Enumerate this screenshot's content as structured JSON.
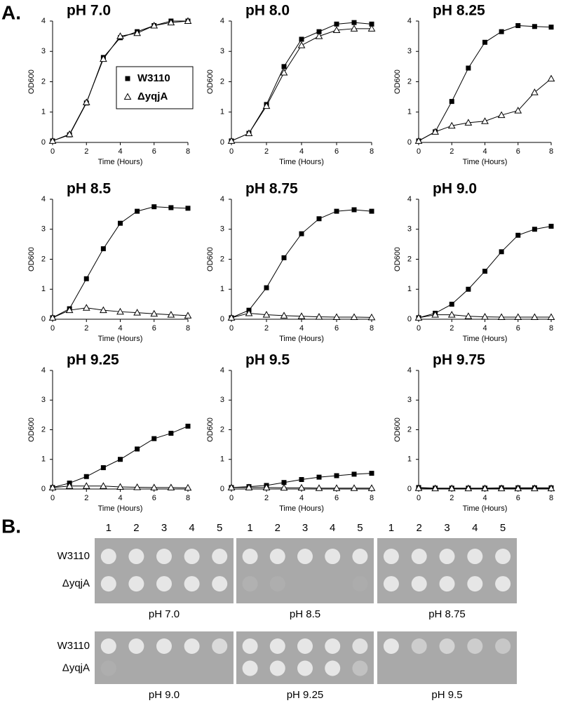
{
  "panel_a": {
    "label": "A.",
    "legend": [
      {
        "name": "W3110",
        "marker": "square"
      },
      {
        "name": "ΔyqjA",
        "marker": "triangle"
      }
    ]
  },
  "chart_data": [
    {
      "type": "line",
      "title": "pH 7.0",
      "xlabel": "Time (Hours)",
      "ylabel": "OD600",
      "x": [
        0,
        1,
        2,
        3,
        4,
        5,
        6,
        7,
        8
      ],
      "xlim": [
        0,
        8
      ],
      "xticks": [
        0,
        2,
        4,
        6,
        8
      ],
      "ylim": [
        0,
        4
      ],
      "yticks": [
        0,
        1,
        2,
        3,
        4
      ],
      "legend": true,
      "series": [
        {
          "color": "#000000",
          "marker": "square",
          "values": [
            0.05,
            0.25,
            1.3,
            2.8,
            3.45,
            3.65,
            3.85,
            4.0,
            4.0
          ]
        },
        {
          "color": "#000000",
          "marker": "triangle",
          "values": [
            0.05,
            0.27,
            1.32,
            2.75,
            3.5,
            3.6,
            3.85,
            3.95,
            4.0
          ]
        }
      ]
    },
    {
      "type": "line",
      "title": "pH 8.0",
      "xlabel": "Time (Hours)",
      "ylabel": "OD600",
      "x": [
        0,
        1,
        2,
        3,
        4,
        5,
        6,
        7,
        8
      ],
      "xlim": [
        0,
        8
      ],
      "xticks": [
        0,
        2,
        4,
        6,
        8
      ],
      "ylim": [
        0,
        4
      ],
      "yticks": [
        0,
        1,
        2,
        3,
        4
      ],
      "legend": false,
      "series": [
        {
          "color": "#000000",
          "marker": "square",
          "values": [
            0.05,
            0.3,
            1.25,
            2.5,
            3.4,
            3.65,
            3.9,
            3.95,
            3.9
          ]
        },
        {
          "color": "#000000",
          "marker": "triangle",
          "values": [
            0.05,
            0.3,
            1.2,
            2.3,
            3.2,
            3.5,
            3.7,
            3.75,
            3.75
          ]
        }
      ]
    },
    {
      "type": "line",
      "title": "pH 8.25",
      "xlabel": "Time (Hours)",
      "ylabel": "OD600",
      "x": [
        0,
        1,
        2,
        3,
        4,
        5,
        6,
        7,
        8
      ],
      "xlim": [
        0,
        8
      ],
      "xticks": [
        0,
        2,
        4,
        6,
        8
      ],
      "ylim": [
        0,
        4
      ],
      "yticks": [
        0,
        1,
        2,
        3,
        4
      ],
      "legend": false,
      "series": [
        {
          "color": "#000000",
          "marker": "square",
          "values": [
            0.05,
            0.35,
            1.35,
            2.45,
            3.3,
            3.65,
            3.85,
            3.82,
            3.8
          ]
        },
        {
          "color": "#000000",
          "marker": "triangle",
          "values": [
            0.05,
            0.35,
            0.55,
            0.65,
            0.7,
            0.9,
            1.05,
            1.65,
            2.1
          ]
        }
      ]
    },
    {
      "type": "line",
      "title": "pH 8.5",
      "xlabel": "Time (Hours)",
      "ylabel": "OD600",
      "x": [
        0,
        1,
        2,
        3,
        4,
        5,
        6,
        7,
        8
      ],
      "xlim": [
        0,
        8
      ],
      "xticks": [
        0,
        2,
        4,
        6,
        8
      ],
      "ylim": [
        0,
        4
      ],
      "yticks": [
        0,
        1,
        2,
        3,
        4
      ],
      "legend": false,
      "series": [
        {
          "color": "#000000",
          "marker": "square",
          "values": [
            0.05,
            0.35,
            1.35,
            2.35,
            3.2,
            3.6,
            3.75,
            3.72,
            3.7
          ]
        },
        {
          "color": "#000000",
          "marker": "triangle",
          "values": [
            0.05,
            0.3,
            0.38,
            0.3,
            0.25,
            0.22,
            0.18,
            0.15,
            0.12
          ]
        }
      ]
    },
    {
      "type": "line",
      "title": "pH 8.75",
      "xlabel": "Time (Hours)",
      "ylabel": "OD600",
      "x": [
        0,
        1,
        2,
        3,
        4,
        5,
        6,
        7,
        8
      ],
      "xlim": [
        0,
        8
      ],
      "xticks": [
        0,
        2,
        4,
        6,
        8
      ],
      "ylim": [
        0,
        4
      ],
      "yticks": [
        0,
        1,
        2,
        3,
        4
      ],
      "legend": false,
      "series": [
        {
          "color": "#000000",
          "marker": "square",
          "values": [
            0.05,
            0.3,
            1.05,
            2.05,
            2.85,
            3.35,
            3.6,
            3.65,
            3.6
          ]
        },
        {
          "color": "#000000",
          "marker": "triangle",
          "values": [
            0.05,
            0.2,
            0.15,
            0.12,
            0.1,
            0.08,
            0.07,
            0.07,
            0.06
          ]
        }
      ]
    },
    {
      "type": "line",
      "title": "pH 9.0",
      "xlabel": "Time (Hours)",
      "ylabel": "OD600",
      "x": [
        0,
        1,
        2,
        3,
        4,
        5,
        6,
        7,
        8
      ],
      "xlim": [
        0,
        8
      ],
      "xticks": [
        0,
        2,
        4,
        6,
        8
      ],
      "ylim": [
        0,
        4
      ],
      "yticks": [
        0,
        1,
        2,
        3,
        4
      ],
      "legend": false,
      "series": [
        {
          "color": "#000000",
          "marker": "square",
          "values": [
            0.05,
            0.2,
            0.5,
            1.0,
            1.6,
            2.25,
            2.8,
            3.0,
            3.1
          ]
        },
        {
          "color": "#000000",
          "marker": "triangle",
          "values": [
            0.05,
            0.15,
            0.15,
            0.1,
            0.08,
            0.07,
            0.07,
            0.07,
            0.07
          ]
        }
      ]
    },
    {
      "type": "line",
      "title": "pH 9.25",
      "xlabel": "Time (Hours)",
      "ylabel": "OD600",
      "x": [
        0,
        1,
        2,
        3,
        4,
        5,
        6,
        7,
        8
      ],
      "xlim": [
        0,
        8
      ],
      "xticks": [
        0,
        2,
        4,
        6,
        8
      ],
      "ylim": [
        0,
        4
      ],
      "yticks": [
        0,
        1,
        2,
        3,
        4
      ],
      "legend": false,
      "series": [
        {
          "color": "#000000",
          "marker": "square",
          "values": [
            0.05,
            0.2,
            0.42,
            0.72,
            1.0,
            1.35,
            1.7,
            1.88,
            2.12
          ]
        },
        {
          "color": "#000000",
          "marker": "triangle",
          "values": [
            0.05,
            0.1,
            0.1,
            0.1,
            0.07,
            0.06,
            0.05,
            0.05,
            0.04
          ]
        }
      ]
    },
    {
      "type": "line",
      "title": "pH 9.5",
      "xlabel": "Time (Hours)",
      "ylabel": "OD600",
      "x": [
        0,
        1,
        2,
        3,
        4,
        5,
        6,
        7,
        8
      ],
      "xlim": [
        0,
        8
      ],
      "xticks": [
        0,
        2,
        4,
        6,
        8
      ],
      "ylim": [
        0,
        4
      ],
      "yticks": [
        0,
        1,
        2,
        3,
        4
      ],
      "legend": false,
      "series": [
        {
          "color": "#000000",
          "marker": "square",
          "values": [
            0.05,
            0.08,
            0.12,
            0.22,
            0.32,
            0.4,
            0.45,
            0.5,
            0.53
          ]
        },
        {
          "color": "#000000",
          "marker": "triangle",
          "values": [
            0.05,
            0.05,
            0.05,
            0.04,
            0.04,
            0.03,
            0.03,
            0.03,
            0.03
          ]
        }
      ]
    },
    {
      "type": "line",
      "title": "pH 9.75",
      "xlabel": "Time (Hours)",
      "ylabel": "OD600",
      "x": [
        0,
        1,
        2,
        3,
        4,
        5,
        6,
        7,
        8
      ],
      "xlim": [
        0,
        8
      ],
      "xticks": [
        0,
        2,
        4,
        6,
        8
      ],
      "ylim": [
        0,
        4
      ],
      "yticks": [
        0,
        1,
        2,
        3,
        4
      ],
      "legend": false,
      "series": [
        {
          "color": "#000000",
          "marker": "square",
          "values": [
            0.05,
            0.03,
            0.03,
            0.03,
            0.03,
            0.04,
            0.04,
            0.04,
            0.04
          ]
        },
        {
          "color": "#000000",
          "marker": "triangle",
          "values": [
            0.03,
            0.02,
            0.02,
            0.02,
            0.02,
            0.02,
            0.02,
            0.02,
            0.02
          ]
        }
      ]
    }
  ],
  "panel_b": {
    "label": "B.",
    "columns": [
      "1",
      "2",
      "3",
      "4",
      "5"
    ],
    "rows": [
      "W3110",
      "ΔyqjA"
    ],
    "plates": [
      "pH 7.0",
      "pH 8.5",
      "pH 8.75",
      "pH 9.0",
      "pH 9.25",
      "pH 9.5"
    ]
  }
}
